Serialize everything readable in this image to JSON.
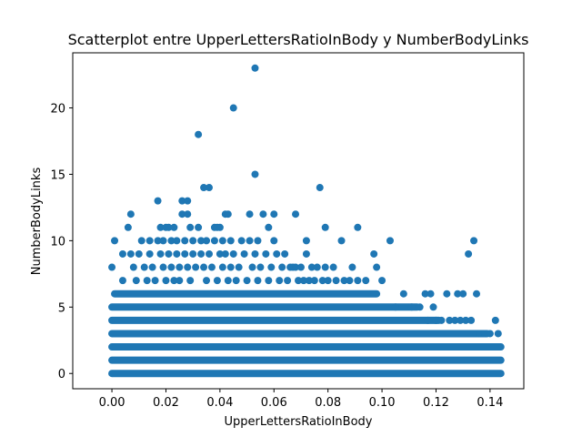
{
  "chart_data": {
    "type": "scatter",
    "title": "Scatterplot entre UpperLettersRatioInBody y NumberBodyLinks",
    "xlabel": "UpperLettersRatioInBody",
    "ylabel": "NumberBodyLinks",
    "xlim": [
      -0.0145,
      0.1525
    ],
    "ylim": [
      -1.15,
      24.15
    ],
    "xticks": [
      "0.00",
      "0.02",
      "0.04",
      "0.06",
      "0.08",
      "0.10",
      "0.12",
      "0.14"
    ],
    "yticks": [
      "0",
      "5",
      "10",
      "15",
      "20"
    ],
    "grid": false,
    "legend": "none",
    "marker_color": "#1f77b4",
    "series": [
      {
        "bands": [
          {
            "y": 0,
            "x": [
              0.0,
              0.144
            ]
          },
          {
            "y": 1,
            "x": [
              0.0,
              0.144
            ]
          },
          {
            "y": 2,
            "x": [
              0.0,
              0.144
            ]
          },
          {
            "y": 3,
            "x": [
              0.0,
              0.139
            ]
          },
          {
            "y": 4,
            "x": [
              0.0,
              0.121
            ]
          },
          {
            "y": 5,
            "x": [
              0.0,
              0.113
            ]
          },
          {
            "y": 6,
            "x": [
              0.001,
              0.098
            ]
          }
        ],
        "points": [
          {
            "x": 0.0,
            "y": 8
          },
          {
            "x": 0.001,
            "y": 10
          },
          {
            "x": 0.004,
            "y": 9
          },
          {
            "x": 0.004,
            "y": 7
          },
          {
            "x": 0.006,
            "y": 11
          },
          {
            "x": 0.007,
            "y": 12
          },
          {
            "x": 0.007,
            "y": 9
          },
          {
            "x": 0.008,
            "y": 8
          },
          {
            "x": 0.009,
            "y": 7
          },
          {
            "x": 0.01,
            "y": 9
          },
          {
            "x": 0.011,
            "y": 10
          },
          {
            "x": 0.012,
            "y": 8
          },
          {
            "x": 0.013,
            "y": 7
          },
          {
            "x": 0.014,
            "y": 10
          },
          {
            "x": 0.014,
            "y": 9
          },
          {
            "x": 0.015,
            "y": 8
          },
          {
            "x": 0.016,
            "y": 7
          },
          {
            "x": 0.017,
            "y": 10
          },
          {
            "x": 0.017,
            "y": 13
          },
          {
            "x": 0.018,
            "y": 11
          },
          {
            "x": 0.018,
            "y": 9
          },
          {
            "x": 0.019,
            "y": 8
          },
          {
            "x": 0.019,
            "y": 10
          },
          {
            "x": 0.02,
            "y": 11
          },
          {
            "x": 0.02,
            "y": 7
          },
          {
            "x": 0.021,
            "y": 9
          },
          {
            "x": 0.021,
            "y": 11
          },
          {
            "x": 0.022,
            "y": 10
          },
          {
            "x": 0.022,
            "y": 8
          },
          {
            "x": 0.023,
            "y": 7
          },
          {
            "x": 0.023,
            "y": 11
          },
          {
            "x": 0.024,
            "y": 9
          },
          {
            "x": 0.024,
            "y": 10
          },
          {
            "x": 0.025,
            "y": 8
          },
          {
            "x": 0.025,
            "y": 7
          },
          {
            "x": 0.026,
            "y": 12
          },
          {
            "x": 0.026,
            "y": 13
          },
          {
            "x": 0.027,
            "y": 10
          },
          {
            "x": 0.027,
            "y": 9
          },
          {
            "x": 0.028,
            "y": 13
          },
          {
            "x": 0.028,
            "y": 8
          },
          {
            "x": 0.028,
            "y": 12
          },
          {
            "x": 0.029,
            "y": 11
          },
          {
            "x": 0.029,
            "y": 7
          },
          {
            "x": 0.03,
            "y": 10
          },
          {
            "x": 0.03,
            "y": 9
          },
          {
            "x": 0.031,
            "y": 8
          },
          {
            "x": 0.032,
            "y": 18
          },
          {
            "x": 0.032,
            "y": 11
          },
          {
            "x": 0.033,
            "y": 10
          },
          {
            "x": 0.033,
            "y": 9
          },
          {
            "x": 0.034,
            "y": 8
          },
          {
            "x": 0.034,
            "y": 14
          },
          {
            "x": 0.035,
            "y": 7
          },
          {
            "x": 0.035,
            "y": 10
          },
          {
            "x": 0.036,
            "y": 14
          },
          {
            "x": 0.036,
            "y": 9
          },
          {
            "x": 0.037,
            "y": 8
          },
          {
            "x": 0.038,
            "y": 11
          },
          {
            "x": 0.038,
            "y": 10
          },
          {
            "x": 0.039,
            "y": 11
          },
          {
            "x": 0.039,
            "y": 7
          },
          {
            "x": 0.04,
            "y": 9
          },
          {
            "x": 0.04,
            "y": 11
          },
          {
            "x": 0.041,
            "y": 8
          },
          {
            "x": 0.041,
            "y": 10
          },
          {
            "x": 0.042,
            "y": 12
          },
          {
            "x": 0.042,
            "y": 9
          },
          {
            "x": 0.043,
            "y": 12
          },
          {
            "x": 0.043,
            "y": 7
          },
          {
            "x": 0.044,
            "y": 10
          },
          {
            "x": 0.044,
            "y": 8
          },
          {
            "x": 0.045,
            "y": 20
          },
          {
            "x": 0.045,
            "y": 9
          },
          {
            "x": 0.046,
            "y": 7
          },
          {
            "x": 0.047,
            "y": 8
          },
          {
            "x": 0.048,
            "y": 10
          },
          {
            "x": 0.049,
            "y": 9
          },
          {
            "x": 0.05,
            "y": 7
          },
          {
            "x": 0.051,
            "y": 12
          },
          {
            "x": 0.051,
            "y": 10
          },
          {
            "x": 0.052,
            "y": 8
          },
          {
            "x": 0.053,
            "y": 23
          },
          {
            "x": 0.053,
            "y": 15
          },
          {
            "x": 0.053,
            "y": 9
          },
          {
            "x": 0.054,
            "y": 10
          },
          {
            "x": 0.054,
            "y": 7
          },
          {
            "x": 0.055,
            "y": 8
          },
          {
            "x": 0.056,
            "y": 12
          },
          {
            "x": 0.057,
            "y": 9
          },
          {
            "x": 0.058,
            "y": 11
          },
          {
            "x": 0.058,
            "y": 7
          },
          {
            "x": 0.059,
            "y": 8
          },
          {
            "x": 0.06,
            "y": 12
          },
          {
            "x": 0.06,
            "y": 10
          },
          {
            "x": 0.061,
            "y": 9
          },
          {
            "x": 0.062,
            "y": 7
          },
          {
            "x": 0.063,
            "y": 8
          },
          {
            "x": 0.064,
            "y": 9
          },
          {
            "x": 0.065,
            "y": 7
          },
          {
            "x": 0.066,
            "y": 8
          },
          {
            "x": 0.067,
            "y": 8
          },
          {
            "x": 0.068,
            "y": 12
          },
          {
            "x": 0.068,
            "y": 8
          },
          {
            "x": 0.069,
            "y": 7
          },
          {
            "x": 0.07,
            "y": 8
          },
          {
            "x": 0.071,
            "y": 7
          },
          {
            "x": 0.072,
            "y": 10
          },
          {
            "x": 0.072,
            "y": 9
          },
          {
            "x": 0.073,
            "y": 7
          },
          {
            "x": 0.074,
            "y": 8
          },
          {
            "x": 0.075,
            "y": 7
          },
          {
            "x": 0.076,
            "y": 8
          },
          {
            "x": 0.077,
            "y": 14
          },
          {
            "x": 0.078,
            "y": 7
          },
          {
            "x": 0.079,
            "y": 11
          },
          {
            "x": 0.079,
            "y": 8
          },
          {
            "x": 0.08,
            "y": 7
          },
          {
            "x": 0.082,
            "y": 8
          },
          {
            "x": 0.083,
            "y": 7
          },
          {
            "x": 0.085,
            "y": 10
          },
          {
            "x": 0.086,
            "y": 7
          },
          {
            "x": 0.088,
            "y": 7
          },
          {
            "x": 0.089,
            "y": 8
          },
          {
            "x": 0.091,
            "y": 11
          },
          {
            "x": 0.091,
            "y": 7
          },
          {
            "x": 0.094,
            "y": 7
          },
          {
            "x": 0.097,
            "y": 9
          },
          {
            "x": 0.098,
            "y": 8
          },
          {
            "x": 0.1,
            "y": 7
          },
          {
            "x": 0.103,
            "y": 10
          },
          {
            "x": 0.105,
            "y": 5
          },
          {
            "x": 0.108,
            "y": 6
          },
          {
            "x": 0.111,
            "y": 5
          },
          {
            "x": 0.114,
            "y": 5
          },
          {
            "x": 0.116,
            "y": 6
          },
          {
            "x": 0.117,
            "y": 4
          },
          {
            "x": 0.118,
            "y": 6
          },
          {
            "x": 0.119,
            "y": 5
          },
          {
            "x": 0.12,
            "y": 4
          },
          {
            "x": 0.122,
            "y": 4
          },
          {
            "x": 0.124,
            "y": 6
          },
          {
            "x": 0.125,
            "y": 4
          },
          {
            "x": 0.127,
            "y": 4
          },
          {
            "x": 0.128,
            "y": 6
          },
          {
            "x": 0.129,
            "y": 4
          },
          {
            "x": 0.13,
            "y": 6
          },
          {
            "x": 0.131,
            "y": 4
          },
          {
            "x": 0.132,
            "y": 9
          },
          {
            "x": 0.133,
            "y": 4
          },
          {
            "x": 0.134,
            "y": 10
          },
          {
            "x": 0.135,
            "y": 6
          },
          {
            "x": 0.136,
            "y": 3
          },
          {
            "x": 0.138,
            "y": 3
          },
          {
            "x": 0.14,
            "y": 3
          },
          {
            "x": 0.142,
            "y": 4
          },
          {
            "x": 0.143,
            "y": 3
          }
        ]
      }
    ]
  }
}
